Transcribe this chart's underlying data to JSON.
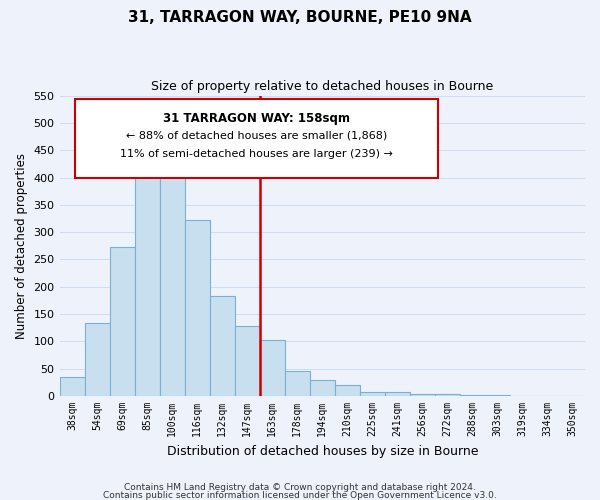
{
  "title": "31, TARRAGON WAY, BOURNE, PE10 9NA",
  "subtitle": "Size of property relative to detached houses in Bourne",
  "xlabel": "Distribution of detached houses by size in Bourne",
  "ylabel": "Number of detached properties",
  "bar_labels": [
    "38sqm",
    "54sqm",
    "69sqm",
    "85sqm",
    "100sqm",
    "116sqm",
    "132sqm",
    "147sqm",
    "163sqm",
    "178sqm",
    "194sqm",
    "210sqm",
    "225sqm",
    "241sqm",
    "256sqm",
    "272sqm",
    "288sqm",
    "303sqm",
    "319sqm",
    "334sqm",
    "350sqm"
  ],
  "bar_values": [
    35,
    133,
    273,
    432,
    405,
    322,
    184,
    128,
    103,
    46,
    30,
    20,
    8,
    7,
    4,
    3,
    2,
    2,
    1,
    1,
    1
  ],
  "bar_color": "#c8dff0",
  "bar_edge_color": "#7ab0d4",
  "vline_x_idx": 8,
  "vline_color": "#cc0000",
  "ylim": [
    0,
    550
  ],
  "yticks": [
    0,
    50,
    100,
    150,
    200,
    250,
    300,
    350,
    400,
    450,
    500,
    550
  ],
  "annotation_title": "31 TARRAGON WAY: 158sqm",
  "annotation_line1": "← 88% of detached houses are smaller (1,868)",
  "annotation_line2": "11% of semi-detached houses are larger (239) →",
  "annotation_box_color": "#ffffff",
  "annotation_box_edge": "#cc0000",
  "footer1": "Contains HM Land Registry data © Crown copyright and database right 2024.",
  "footer2": "Contains public sector information licensed under the Open Government Licence v3.0.",
  "grid_color": "#ccdcee",
  "background_color": "#eef2fa"
}
